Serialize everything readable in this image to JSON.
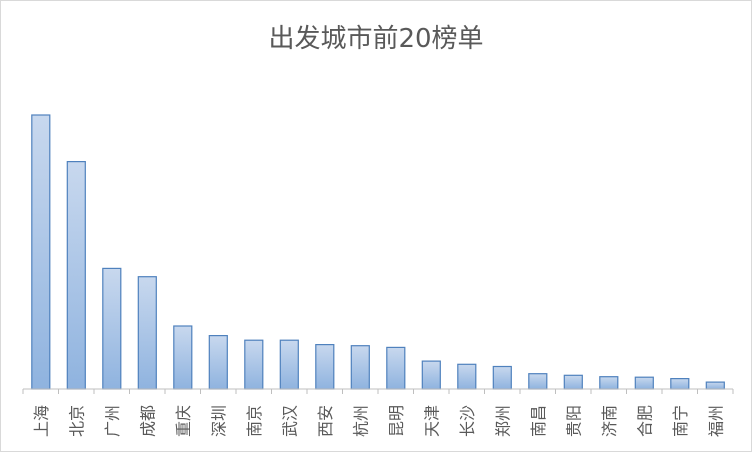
{
  "chart_data": {
    "type": "bar",
    "title": "出发城市前20榜单",
    "categories": [
      "上海",
      "北京",
      "广州",
      "成都",
      "重庆",
      "深圳",
      "南京",
      "武汉",
      "西安",
      "杭州",
      "昆明",
      "天津",
      "长沙",
      "郑州",
      "南昌",
      "贵阳",
      "济南",
      "合肥",
      "南宁",
      "福州"
    ],
    "values": [
      100,
      83,
      44,
      41,
      23,
      19.5,
      17.8,
      17.8,
      16.2,
      15.8,
      15.2,
      10.2,
      9,
      8.2,
      5.6,
      5,
      4.5,
      4.3,
      3.8,
      2.5
    ],
    "ylim": [
      0,
      100
    ],
    "grid": false,
    "legend": "none",
    "colors": {
      "bar_fill_top": "#c8d8ee",
      "bar_fill_bottom": "#8fb3df",
      "bar_stroke": "#4f81bd",
      "axis": "#bfbfbf",
      "label": "#595959"
    }
  }
}
